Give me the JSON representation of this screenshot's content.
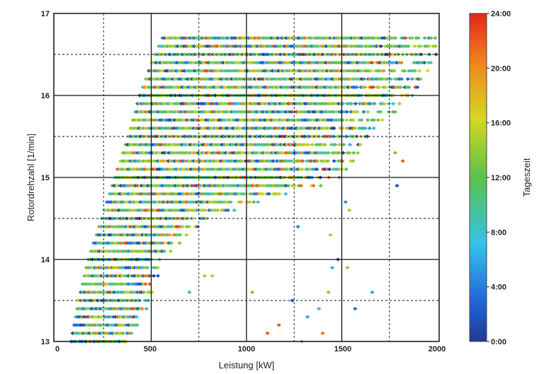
{
  "chart_data": {
    "type": "scatter",
    "title": "",
    "xlabel": "Leistung [kW]",
    "ylabel": "Rotordrehzahl [1/min]",
    "xlim": [
      0,
      2000
    ],
    "ylim": [
      13,
      17
    ],
    "x_ticks": [
      "0",
      "500",
      "1000",
      "1500",
      "2000"
    ],
    "y_ticks": [
      "13",
      "14",
      "15",
      "16",
      "17"
    ],
    "grid": "solid major lines every 500 kW and 1 rpm, dashed minor lines every 250 kW and 0.5 rpm",
    "marker": "diamond",
    "colorbar": {
      "label": "Tageszeit",
      "range_hours": [
        0,
        24
      ],
      "ticks": [
        "0:00",
        "4:00",
        "8:00",
        "12:00",
        "16:00",
        "20:00",
        "24:00"
      ],
      "colormap": "jet",
      "position": "right"
    },
    "description_of_distribution": "Dense band of diamond markers: rows at rotor speed steps of about 0.1 rpm from 13.0 to 16.7 rpm; lower power limit rises roughly linearly from ~80 kW at 13.0 rpm to ~560 kW at 16.7 rpm; upper limit about 400 kW at 13 rpm, widening to 2000 kW above ~16 rpm; sparse outliers in the lower right; colours dominated by green (12:00-16:00) with blue and yellow/red mixed.",
    "rows": [
      {
        "rpm": 13.0,
        "x_min": 80,
        "x_max": 400
      },
      {
        "rpm": 13.5,
        "x_min": 120,
        "x_max": 500
      },
      {
        "rpm": 14.0,
        "x_min": 170,
        "x_max": 560
      },
      {
        "rpm": 14.5,
        "x_min": 240,
        "x_max": 800
      },
      {
        "rpm": 15.0,
        "x_min": 310,
        "x_max": 1500
      },
      {
        "rpm": 15.5,
        "x_min": 380,
        "x_max": 1650
      },
      {
        "rpm": 16.0,
        "x_min": 440,
        "x_max": 1880
      },
      {
        "rpm": 16.5,
        "x_min": 520,
        "x_max": 2000
      },
      {
        "rpm": 16.7,
        "x_min": 560,
        "x_max": 2000
      }
    ],
    "outliers": [
      {
        "x": 1170,
        "y": 13.2,
        "color_hour": 22
      },
      {
        "x": 1110,
        "y": 13.1,
        "color_hour": 22
      },
      {
        "x": 1400,
        "y": 13.1,
        "color_hour": 21
      },
      {
        "x": 1820,
        "y": 15.2,
        "color_hour": 22
      },
      {
        "x": 1540,
        "y": 14.6,
        "color_hour": 18
      },
      {
        "x": 1660,
        "y": 13.6,
        "color_hour": 6
      },
      {
        "x": 1290,
        "y": 13.0,
        "color_hour": 13
      },
      {
        "x": 1430,
        "y": 13.6,
        "color_hour": 14
      },
      {
        "x": 1240,
        "y": 13.5,
        "color_hour": 3
      },
      {
        "x": 1530,
        "y": 13.9,
        "color_hour": 14
      },
      {
        "x": 1480,
        "y": 14.0,
        "color_hour": 1
      },
      {
        "x": 1270,
        "y": 14.4,
        "color_hour": 4
      },
      {
        "x": 1440,
        "y": 14.3,
        "color_hour": 18
      },
      {
        "x": 1450,
        "y": 13.9,
        "color_hour": 6
      },
      {
        "x": 780,
        "y": 13.8,
        "color_hour": 14
      },
      {
        "x": 820,
        "y": 13.8,
        "color_hour": 15
      },
      {
        "x": 1320,
        "y": 13.3,
        "color_hour": 6
      },
      {
        "x": 1380,
        "y": 13.4,
        "color_hour": 9
      },
      {
        "x": 1570,
        "y": 13.4,
        "color_hour": 3
      },
      {
        "x": 1030,
        "y": 13.6,
        "color_hour": 13
      },
      {
        "x": 700,
        "y": 13.6,
        "color_hour": 9
      },
      {
        "x": 1520,
        "y": 14.7,
        "color_hour": 5
      },
      {
        "x": 1390,
        "y": 14.9,
        "color_hour": 13
      },
      {
        "x": 1780,
        "y": 15.3,
        "color_hour": 13
      },
      {
        "x": 1790,
        "y": 14.9,
        "color_hour": 2
      }
    ]
  }
}
